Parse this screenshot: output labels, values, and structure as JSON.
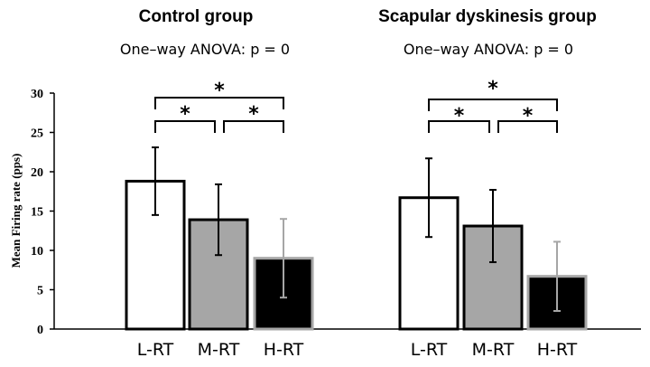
{
  "chart_data": {
    "type": "bar",
    "ylabel": "Mean Firing rate (pps)",
    "ylim": [
      0,
      30
    ],
    "yticks": [
      0,
      5,
      10,
      15,
      20,
      25,
      30
    ],
    "categories": [
      "L-RT",
      "M-RT",
      "H-RT"
    ],
    "colors": {
      "L-RT": {
        "fill": "#ffffff",
        "stroke": "#000000",
        "error": "#000000"
      },
      "M-RT": {
        "fill": "#a6a6a6",
        "stroke": "#000000",
        "error": "#000000"
      },
      "H-RT": {
        "fill": "#000000",
        "stroke": "#a6a6a6",
        "error": "#a6a6a6"
      }
    },
    "groups": [
      {
        "title": "Control group",
        "anova": "One–way ANOVA: p = 0",
        "values": [
          18.8,
          13.9,
          9.0
        ],
        "sd": [
          4.3,
          4.5,
          5.0
        ],
        "significance": [
          {
            "from": 0,
            "to": 2,
            "label": "*"
          },
          {
            "from": 0,
            "to": 1,
            "label": "*"
          },
          {
            "from": 1,
            "to": 2,
            "label": "*"
          }
        ]
      },
      {
        "title": "Scapular dyskinesis group",
        "anova": "One–way ANOVA: p = 0",
        "values": [
          16.7,
          13.1,
          6.7
        ],
        "sd": [
          5.0,
          4.6,
          4.4
        ],
        "significance": [
          {
            "from": 0,
            "to": 2,
            "label": "*"
          },
          {
            "from": 0,
            "to": 1,
            "label": "*"
          },
          {
            "from": 1,
            "to": 2,
            "label": "*"
          }
        ]
      }
    ]
  }
}
